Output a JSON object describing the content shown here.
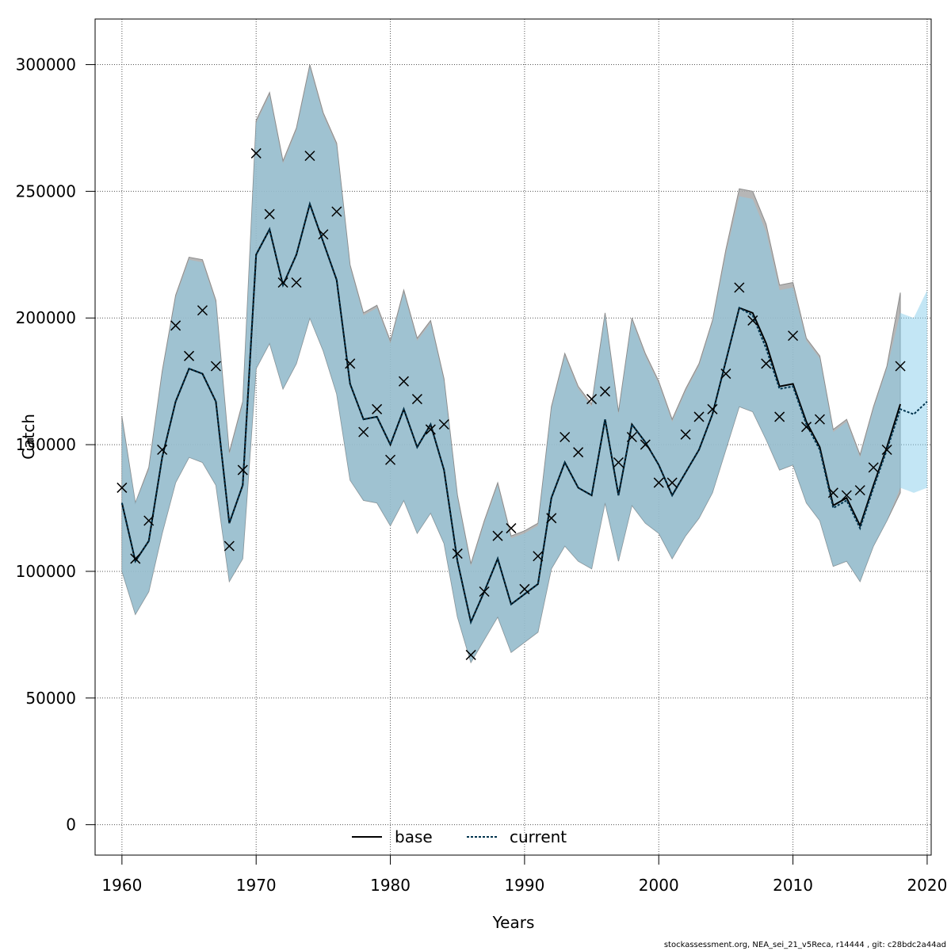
{
  "chart_data": {
    "type": "line",
    "title": "",
    "xlabel": "Years",
    "ylabel": "Catch",
    "xlim": [
      1958,
      2020.3
    ],
    "ylim": [
      -12000,
      318000
    ],
    "grid": true,
    "x_ticks": [
      1960,
      1970,
      1980,
      1990,
      2000,
      2010,
      2020
    ],
    "y_ticks": [
      0,
      50000,
      100000,
      150000,
      200000,
      250000,
      300000
    ],
    "legend": {
      "placement": "bottom-center",
      "entries": [
        "base",
        "current"
      ]
    },
    "colors": {
      "base_band": "#a9a9a9",
      "current_band": "#87ceeb",
      "base_line": "#000000",
      "current_line": "#00334d",
      "observed": "#000000",
      "grid": "#555555"
    },
    "series": [
      {
        "name": "base",
        "x": [
          1960,
          1961,
          1962,
          1963,
          1964,
          1965,
          1966,
          1967,
          1968,
          1969,
          1970,
          1971,
          1972,
          1973,
          1974,
          1975,
          1976,
          1977,
          1978,
          1979,
          1980,
          1981,
          1982,
          1983,
          1984,
          1985,
          1986,
          1987,
          1988,
          1989,
          1990,
          1991,
          1992,
          1993,
          1994,
          1995,
          1996,
          1997,
          1998,
          1999,
          2000,
          2001,
          2002,
          2003,
          2004,
          2005,
          2006,
          2007,
          2008,
          2009,
          2010,
          2011,
          2012,
          2013,
          2014,
          2015,
          2016,
          2017,
          2018
        ],
        "values": [
          127000,
          104000,
          112000,
          145000,
          167000,
          180000,
          178000,
          167000,
          119000,
          134000,
          225000,
          235000,
          213000,
          225000,
          245000,
          230000,
          215000,
          174000,
          160000,
          161000,
          150000,
          164000,
          149000,
          158000,
          140000,
          104000,
          80000,
          92000,
          105000,
          87000,
          91000,
          95000,
          129000,
          143000,
          133000,
          130000,
          160000,
          130000,
          158000,
          151000,
          142000,
          130000,
          139000,
          148000,
          162000,
          183000,
          204000,
          202000,
          190000,
          173000,
          174000,
          159000,
          149000,
          126000,
          129000,
          118000,
          134000,
          149000,
          166000
        ],
        "lower": [
          100000,
          83000,
          92000,
          115000,
          135000,
          145000,
          143000,
          134000,
          96000,
          105000,
          180000,
          190000,
          172000,
          182000,
          200000,
          187000,
          170000,
          136000,
          128000,
          127000,
          118000,
          128000,
          115000,
          123000,
          111000,
          82000,
          64000,
          73000,
          82000,
          68000,
          72000,
          76000,
          101000,
          110000,
          104000,
          101000,
          127000,
          104000,
          126000,
          119000,
          115000,
          105000,
          114000,
          121000,
          131000,
          148000,
          165000,
          163000,
          152000,
          140000,
          142000,
          127000,
          120000,
          102000,
          104000,
          96000,
          110000,
          120000,
          131000
        ],
        "upper": [
          161000,
          127000,
          141000,
          179000,
          209000,
          224000,
          223000,
          207000,
          147000,
          167000,
          278000,
          289000,
          262000,
          275000,
          300000,
          281000,
          269000,
          221000,
          202000,
          205000,
          191000,
          211000,
          192000,
          199000,
          176000,
          130000,
          103000,
          120000,
          135000,
          114000,
          116000,
          119000,
          165000,
          186000,
          173000,
          166000,
          202000,
          163000,
          200000,
          186000,
          175000,
          160000,
          172000,
          182000,
          199000,
          227000,
          251000,
          250000,
          237000,
          213000,
          214000,
          192000,
          185000,
          156000,
          160000,
          146000,
          165000,
          181000,
          210000
        ]
      },
      {
        "name": "current",
        "x": [
          1960,
          1961,
          1962,
          1963,
          1964,
          1965,
          1966,
          1967,
          1968,
          1969,
          1970,
          1971,
          1972,
          1973,
          1974,
          1975,
          1976,
          1977,
          1978,
          1979,
          1980,
          1981,
          1982,
          1983,
          1984,
          1985,
          1986,
          1987,
          1988,
          1989,
          1990,
          1991,
          1992,
          1993,
          1994,
          1995,
          1996,
          1997,
          1998,
          1999,
          2000,
          2001,
          2002,
          2003,
          2004,
          2005,
          2006,
          2007,
          2008,
          2009,
          2010,
          2011,
          2012,
          2013,
          2014,
          2015,
          2016,
          2017,
          2018,
          2019,
          2020
        ],
        "values": [
          127000,
          104000,
          112000,
          145000,
          167000,
          180000,
          178000,
          167000,
          119000,
          134000,
          225000,
          235000,
          213000,
          225000,
          245000,
          230000,
          215000,
          174000,
          160000,
          161000,
          150000,
          164000,
          149000,
          158000,
          140000,
          104000,
          80000,
          92000,
          105000,
          87000,
          91000,
          95000,
          129000,
          143000,
          133000,
          130000,
          160000,
          130000,
          158000,
          151000,
          142000,
          130000,
          139000,
          148000,
          162000,
          183000,
          204000,
          201000,
          188000,
          172000,
          173000,
          158000,
          148000,
          125000,
          128000,
          117000,
          133000,
          148000,
          164000,
          162000,
          167000
        ],
        "lower": [
          100000,
          83000,
          92000,
          115000,
          135000,
          145000,
          143000,
          134000,
          96000,
          105000,
          180000,
          190000,
          172000,
          182000,
          200000,
          187000,
          170000,
          136000,
          128000,
          127000,
          118000,
          128000,
          115000,
          123000,
          111000,
          82000,
          64000,
          73000,
          82000,
          68000,
          72000,
          76000,
          101000,
          110000,
          104000,
          101000,
          127000,
          104000,
          126000,
          119000,
          115000,
          105000,
          114000,
          121000,
          131000,
          148000,
          165000,
          163000,
          152000,
          140000,
          142000,
          127000,
          120000,
          102000,
          104000,
          96000,
          110000,
          120000,
          133000,
          131000,
          133000
        ],
        "upper": [
          160000,
          127000,
          140000,
          178000,
          208000,
          223000,
          222000,
          206000,
          146000,
          166000,
          277000,
          288000,
          261000,
          274000,
          299000,
          280000,
          268000,
          220000,
          201000,
          204000,
          190000,
          210000,
          191000,
          198000,
          175000,
          129000,
          102000,
          119000,
          134000,
          113000,
          115000,
          118000,
          164000,
          185000,
          172000,
          165000,
          201000,
          162000,
          199000,
          185000,
          174000,
          159000,
          171000,
          181000,
          198000,
          225000,
          248000,
          247000,
          234000,
          211000,
          212000,
          191000,
          184000,
          155000,
          159000,
          145000,
          164000,
          180000,
          202000,
          200000,
          211000
        ]
      }
    ],
    "observed": {
      "x": [
        1960,
        1961,
        1962,
        1963,
        1964,
        1965,
        1966,
        1967,
        1968,
        1969,
        1970,
        1971,
        1972,
        1973,
        1974,
        1975,
        1976,
        1977,
        1978,
        1979,
        1980,
        1981,
        1982,
        1983,
        1984,
        1985,
        1986,
        1987,
        1988,
        1989,
        1990,
        1991,
        1992,
        1993,
        1994,
        1995,
        1996,
        1997,
        1998,
        1999,
        2000,
        2001,
        2002,
        2003,
        2004,
        2005,
        2006,
        2007,
        2008,
        2009,
        2010,
        2011,
        2012,
        2013,
        2014,
        2015,
        2016,
        2017,
        2018
      ],
      "values": [
        133000,
        105000,
        120000,
        148000,
        197000,
        185000,
        203000,
        181000,
        110000,
        140000,
        265000,
        241000,
        214000,
        214000,
        264000,
        233000,
        242000,
        182000,
        155000,
        164000,
        144000,
        175000,
        168000,
        156000,
        158000,
        107000,
        67000,
        92000,
        114000,
        117000,
        93000,
        106000,
        121000,
        153000,
        147000,
        168000,
        171000,
        143000,
        153000,
        150000,
        135000,
        135000,
        154000,
        161000,
        164000,
        178000,
        212000,
        199000,
        182000,
        161000,
        193000,
        157000,
        160000,
        131000,
        130000,
        132000,
        141000,
        148000,
        181000
      ]
    }
  },
  "footer_note": "stockassessment.org, NEA_sei_21_v5Reca, r14444 , git: c28bdc2a44ad"
}
